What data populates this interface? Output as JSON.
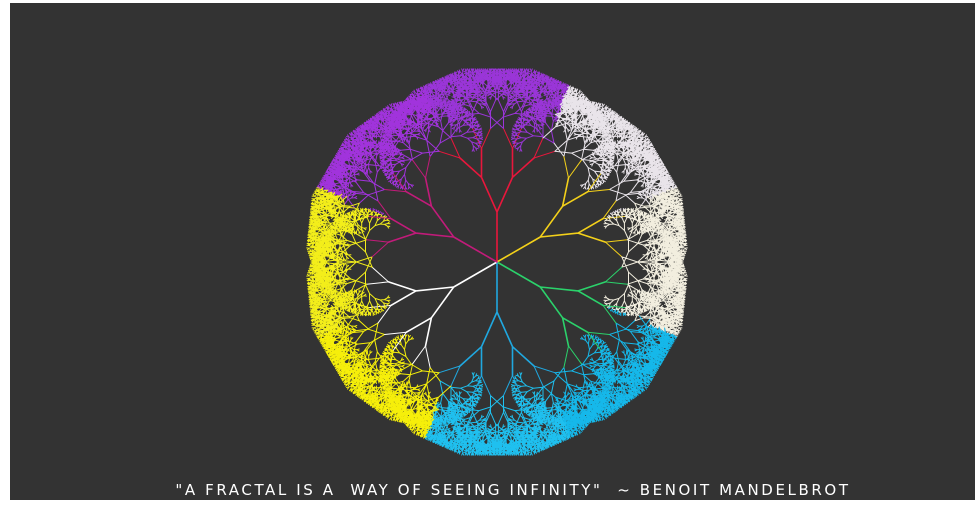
{
  "caption": "\"A FRACTAL IS A  WAY OF SEEING INFINITY\"  ~ BENOIT MANDELBROT"
}
